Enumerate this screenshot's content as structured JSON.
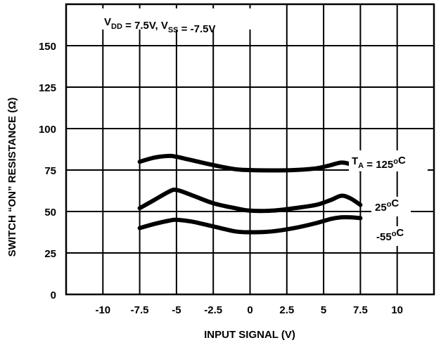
{
  "chart_data": {
    "type": "line",
    "xlabel": "INPUT SIGNAL (V)",
    "ylabel": "SWITCH “ON” RESISTANCE (Ω)",
    "xlim": [
      -12.5,
      12.5
    ],
    "ylim": [
      0,
      175
    ],
    "x_ticks": [
      "-10",
      "-7.5",
      "-5",
      "-2.5",
      "0",
      "2.5",
      "5",
      "7.5",
      "10"
    ],
    "x_tick_values": [
      -10,
      -7.5,
      -5,
      -2.5,
      0,
      2.5,
      5,
      7.5,
      10
    ],
    "y_ticks": [
      "0",
      "25",
      "50",
      "75",
      "100",
      "125",
      "150"
    ],
    "y_tick_values": [
      0,
      25,
      50,
      75,
      100,
      125,
      150
    ],
    "grid": true,
    "annotation": {
      "parts": [
        {
          "t": "V",
          "sub": false
        },
        {
          "t": "DD",
          "sub": true
        },
        {
          "t": " = 7.5V, V",
          "sub": false
        },
        {
          "t": "SS",
          "sub": true
        },
        {
          "t": " = -7.5V",
          "sub": false
        }
      ]
    },
    "series": [
      {
        "label_parts": [
          {
            "t": "T",
            "sup": false,
            "sub": false
          },
          {
            "t": "A",
            "sup": false,
            "sub": true
          },
          {
            "t": " = 125",
            "sup": false,
            "sub": false
          },
          {
            "t": "o",
            "sup": true,
            "sub": false
          },
          {
            "t": "C",
            "sup": false,
            "sub": false
          }
        ],
        "x": [
          -7.5,
          -6.5,
          -5.5,
          -5,
          -4,
          -2.5,
          -1,
          0,
          1.5,
          3,
          4.5,
          5.5,
          6.2,
          6.8,
          7.5
        ],
        "y": [
          80,
          82.5,
          83.5,
          83,
          81,
          78,
          75.5,
          75,
          74.8,
          75,
          76,
          78,
          79.5,
          78.5,
          75
        ]
      },
      {
        "label_parts": [
          {
            "t": "25",
            "sup": false,
            "sub": false
          },
          {
            "t": "o",
            "sup": true,
            "sub": false
          },
          {
            "t": "C",
            "sup": false,
            "sub": false
          }
        ],
        "x": [
          -7.5,
          -6.5,
          -5.5,
          -5,
          -4,
          -2.5,
          -1,
          0,
          1.5,
          3,
          4.5,
          5.5,
          6.2,
          6.8,
          7.5
        ],
        "y": [
          52,
          57,
          62,
          63,
          60,
          55,
          52,
          50.5,
          50.5,
          52,
          54,
          57,
          59.5,
          58,
          54
        ]
      },
      {
        "label_parts": [
          {
            "t": "-55",
            "sup": false,
            "sub": false
          },
          {
            "t": "o",
            "sup": true,
            "sub": false
          },
          {
            "t": "C",
            "sup": false,
            "sub": false
          }
        ],
        "x": [
          -7.5,
          -6.5,
          -5.5,
          -5,
          -4,
          -2.5,
          -1,
          0,
          1.5,
          3,
          4.5,
          5.5,
          6.2,
          6.8,
          7.5
        ],
        "y": [
          40,
          42.5,
          44.5,
          45,
          44,
          41,
          38,
          37.5,
          38,
          40,
          43,
          45.5,
          46.5,
          46.5,
          46
        ]
      }
    ]
  }
}
